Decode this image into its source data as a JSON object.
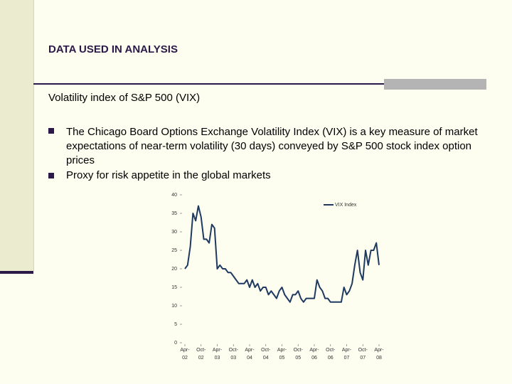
{
  "header": {
    "title": "DATA USED IN ANALYSIS"
  },
  "subtitle": "Volatility index of S&P 500 (VIX)",
  "bullets": [
    "The Chicago Board Options Exchange Volatility Index (VIX) is a key measure of market expectations of near-term volatility (30 days) conveyed by S&P 500 stock index option prices",
    "Proxy for risk appetite in the global markets"
  ],
  "chart_data": {
    "type": "line",
    "series": [
      {
        "name": "VIX Index",
        "color": "#1f3a60",
        "values": [
          20,
          21,
          26,
          35,
          33,
          37,
          34,
          28,
          28,
          27,
          32,
          31,
          20,
          21,
          20,
          20,
          19,
          19,
          18,
          17,
          16,
          16,
          16,
          17,
          15,
          17,
          15,
          16,
          14,
          15,
          15,
          13,
          14,
          13,
          12,
          14,
          15,
          13,
          12,
          11,
          13,
          13,
          14,
          12,
          11,
          12,
          12,
          12,
          12,
          17,
          15,
          14,
          12,
          12,
          11,
          11,
          11,
          11,
          11,
          15,
          13,
          14,
          16,
          21,
          25,
          19,
          17,
          25,
          21,
          25,
          25,
          27,
          21
        ]
      }
    ],
    "xlim": [
      0,
      72
    ],
    "xticks": [
      {
        "value": 0,
        "label": "Apr-02"
      },
      {
        "value": 6,
        "label": "Oct-02"
      },
      {
        "value": 12,
        "label": "Apr-03"
      },
      {
        "value": 18,
        "label": "Oct-03"
      },
      {
        "value": 24,
        "label": "Apr-04"
      },
      {
        "value": 30,
        "label": "Oct-04"
      },
      {
        "value": 36,
        "label": "Apr-05"
      },
      {
        "value": 42,
        "label": "Oct-05"
      },
      {
        "value": 48,
        "label": "Apr-06"
      },
      {
        "value": 54,
        "label": "Oct-06"
      },
      {
        "value": 60,
        "label": "Apr-07"
      },
      {
        "value": 66,
        "label": "Oct-07"
      },
      {
        "value": 72,
        "label": "Apr-08"
      }
    ],
    "ylim": [
      0,
      40
    ],
    "yticks": [
      0,
      5,
      10,
      15,
      20,
      25,
      30,
      35,
      40
    ],
    "legend": "top-right"
  }
}
